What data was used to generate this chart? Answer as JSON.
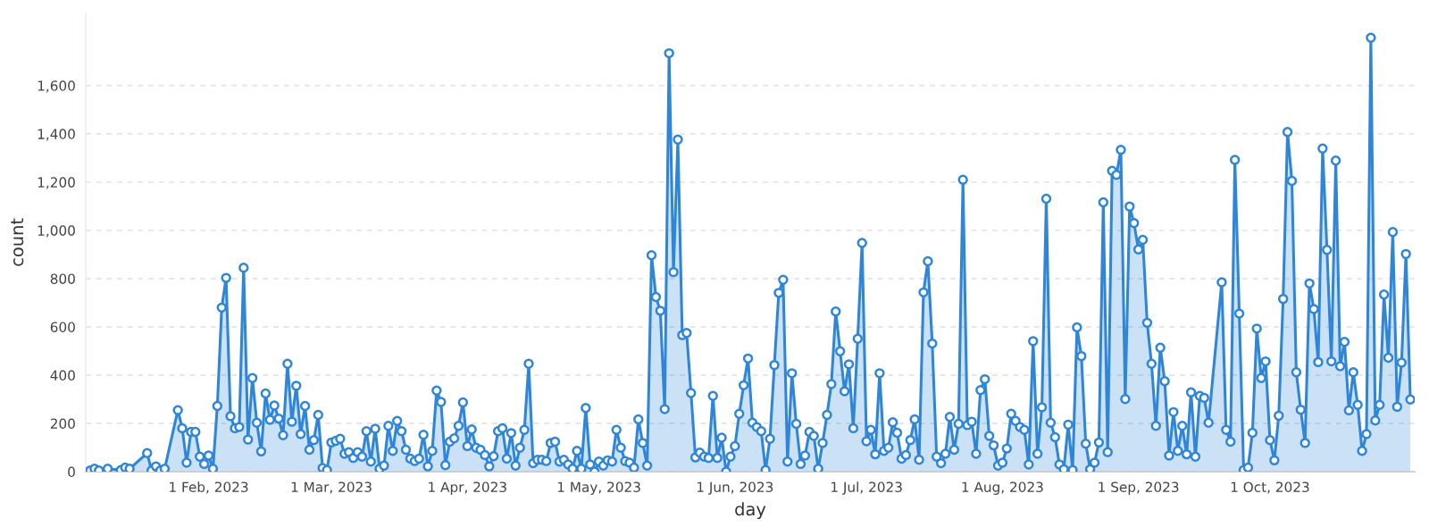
{
  "chart_data": {
    "type": "area",
    "xlabel": "day",
    "ylabel": "count",
    "color": "#2f86d8",
    "marker": "circle",
    "line_style": "solid",
    "grid": "y",
    "legend": false,
    "xlim": [
      "2023-01-04",
      "2023-11-03"
    ],
    "ylim": [
      0,
      1900
    ],
    "xticks": [
      {
        "value": "2023-02-01",
        "label": "1 Feb, 2023"
      },
      {
        "value": "2023-03-01",
        "label": "1 Mar, 2023"
      },
      {
        "value": "2023-04-01",
        "label": "1 Apr, 2023"
      },
      {
        "value": "2023-05-01",
        "label": "1 May, 2023"
      },
      {
        "value": "2023-06-01",
        "label": "1 Jun, 2023"
      },
      {
        "value": "2023-07-01",
        "label": "1 Jul, 2023"
      },
      {
        "value": "2023-08-01",
        "label": "1 Aug, 2023"
      },
      {
        "value": "2023-09-01",
        "label": "1 Sep, 2023"
      },
      {
        "value": "2023-10-01",
        "label": "1 Oct, 2023"
      }
    ],
    "yticks": [
      0,
      200,
      400,
      600,
      800,
      {
        "value": 1000,
        "label": "1,000"
      },
      {
        "value": 1200,
        "label": "1,200"
      },
      {
        "value": 1400,
        "label": "1,400"
      },
      {
        "value": 1600,
        "label": "1,600"
      }
    ],
    "x": [
      "2023-01-05",
      "2023-01-06",
      "2023-01-07",
      "2023-01-09",
      "2023-01-12",
      "2023-01-13",
      "2023-01-14",
      "2023-01-18",
      "2023-01-19",
      "2023-01-20",
      "2023-01-21",
      "2023-01-22",
      "2023-01-25",
      "2023-01-26",
      "2023-01-27",
      "2023-01-28",
      "2023-01-29",
      "2023-01-30",
      "2023-01-31",
      "2023-02-01",
      "2023-02-02",
      "2023-02-03",
      "2023-02-04",
      "2023-02-05",
      "2023-02-06",
      "2023-02-07",
      "2023-02-08",
      "2023-02-09",
      "2023-02-10",
      "2023-02-11",
      "2023-02-12",
      "2023-02-13",
      "2023-02-14",
      "2023-02-15",
      "2023-02-16",
      "2023-02-17",
      "2023-02-18",
      "2023-02-19",
      "2023-02-20",
      "2023-02-21",
      "2023-02-22",
      "2023-02-23",
      "2023-02-24",
      "2023-02-25",
      "2023-02-26",
      "2023-02-27",
      "2023-02-28",
      "2023-03-01",
      "2023-03-02",
      "2023-03-03",
      "2023-03-04",
      "2023-03-05",
      "2023-03-06",
      "2023-03-07",
      "2023-03-08",
      "2023-03-09",
      "2023-03-10",
      "2023-03-11",
      "2023-03-12",
      "2023-03-13",
      "2023-03-14",
      "2023-03-15",
      "2023-03-16",
      "2023-03-17",
      "2023-03-18",
      "2023-03-19",
      "2023-03-20",
      "2023-03-21",
      "2023-03-22",
      "2023-03-23",
      "2023-03-24",
      "2023-03-25",
      "2023-03-26",
      "2023-03-27",
      "2023-03-28",
      "2023-03-29",
      "2023-03-30",
      "2023-03-31",
      "2023-04-01",
      "2023-04-02",
      "2023-04-03",
      "2023-04-04",
      "2023-04-05",
      "2023-04-06",
      "2023-04-07",
      "2023-04-08",
      "2023-04-09",
      "2023-04-10",
      "2023-04-11",
      "2023-04-12",
      "2023-04-13",
      "2023-04-14",
      "2023-04-15",
      "2023-04-16",
      "2023-04-17",
      "2023-04-18",
      "2023-04-19",
      "2023-04-20",
      "2023-04-21",
      "2023-04-22",
      "2023-04-23",
      "2023-04-24",
      "2023-04-25",
      "2023-04-26",
      "2023-04-27",
      "2023-04-28",
      "2023-04-29",
      "2023-04-30",
      "2023-05-01",
      "2023-05-02",
      "2023-05-03",
      "2023-05-04",
      "2023-05-05",
      "2023-05-06",
      "2023-05-07",
      "2023-05-08",
      "2023-05-09",
      "2023-05-10",
      "2023-05-11",
      "2023-05-12",
      "2023-05-13",
      "2023-05-14",
      "2023-05-15",
      "2023-05-16",
      "2023-05-17",
      "2023-05-18",
      "2023-05-19",
      "2023-05-20",
      "2023-05-21",
      "2023-05-22",
      "2023-05-23",
      "2023-05-24",
      "2023-05-25",
      "2023-05-26",
      "2023-05-27",
      "2023-05-28",
      "2023-05-29",
      "2023-05-30",
      "2023-05-31",
      "2023-06-01",
      "2023-06-02",
      "2023-06-03",
      "2023-06-04",
      "2023-06-05",
      "2023-06-06",
      "2023-06-07",
      "2023-06-08",
      "2023-06-09",
      "2023-06-10",
      "2023-06-11",
      "2023-06-12",
      "2023-06-13",
      "2023-06-14",
      "2023-06-15",
      "2023-06-16",
      "2023-06-17",
      "2023-06-18",
      "2023-06-19",
      "2023-06-20",
      "2023-06-21",
      "2023-06-22",
      "2023-06-23",
      "2023-06-24",
      "2023-06-25",
      "2023-06-26",
      "2023-06-27",
      "2023-06-28",
      "2023-06-29",
      "2023-06-30",
      "2023-07-01",
      "2023-07-02",
      "2023-07-03",
      "2023-07-04",
      "2023-07-05",
      "2023-07-06",
      "2023-07-07",
      "2023-07-08",
      "2023-07-09",
      "2023-07-10",
      "2023-07-11",
      "2023-07-12",
      "2023-07-13",
      "2023-07-14",
      "2023-07-15",
      "2023-07-16",
      "2023-07-17",
      "2023-07-18",
      "2023-07-19",
      "2023-07-20",
      "2023-07-21",
      "2023-07-22",
      "2023-07-23",
      "2023-07-24",
      "2023-07-25",
      "2023-07-26",
      "2023-07-27",
      "2023-07-28",
      "2023-07-29",
      "2023-07-30",
      "2023-07-31",
      "2023-08-01",
      "2023-08-02",
      "2023-08-03",
      "2023-08-04",
      "2023-08-05",
      "2023-08-06",
      "2023-08-07",
      "2023-08-08",
      "2023-08-09",
      "2023-08-10",
      "2023-08-11",
      "2023-08-12",
      "2023-08-13",
      "2023-08-14",
      "2023-08-15",
      "2023-08-16",
      "2023-08-17",
      "2023-08-18",
      "2023-08-19",
      "2023-08-20",
      "2023-08-21",
      "2023-08-22",
      "2023-08-23",
      "2023-08-24",
      "2023-08-25",
      "2023-08-26",
      "2023-08-27",
      "2023-08-28",
      "2023-08-29",
      "2023-08-30",
      "2023-08-31",
      "2023-09-01",
      "2023-09-02",
      "2023-09-03",
      "2023-09-04",
      "2023-09-05",
      "2023-09-06",
      "2023-09-07",
      "2023-09-08",
      "2023-09-09",
      "2023-09-10",
      "2023-09-11",
      "2023-09-12",
      "2023-09-13",
      "2023-09-14",
      "2023-09-15",
      "2023-09-16",
      "2023-09-17",
      "2023-09-20",
      "2023-09-21",
      "2023-09-22",
      "2023-09-23",
      "2023-09-24",
      "2023-09-25",
      "2023-09-26",
      "2023-09-27",
      "2023-09-28",
      "2023-09-29",
      "2023-09-30",
      "2023-10-01",
      "2023-10-02",
      "2023-10-03",
      "2023-10-04",
      "2023-10-05",
      "2023-10-06",
      "2023-10-07",
      "2023-10-08",
      "2023-10-09",
      "2023-10-10",
      "2023-10-11",
      "2023-10-12",
      "2023-10-13",
      "2023-10-14",
      "2023-10-15",
      "2023-10-16",
      "2023-10-17",
      "2023-10-18",
      "2023-10-19",
      "2023-10-20",
      "2023-10-21",
      "2023-10-22",
      "2023-10-23",
      "2023-10-24",
      "2023-10-25",
      "2023-10-26",
      "2023-10-27",
      "2023-10-28",
      "2023-10-29",
      "2023-10-30",
      "2023-10-31",
      "2023-11-01",
      "2023-11-02"
    ],
    "values": [
      5,
      12,
      5,
      12,
      7,
      17,
      12,
      77,
      5,
      22,
      5,
      12,
      255,
      180,
      37,
      165,
      165,
      62,
      32,
      67,
      12,
      272,
      680,
      803,
      230,
      180,
      185,
      845,
      133,
      388,
      203,
      84,
      324,
      215,
      274,
      220,
      151,
      447,
      207,
      356,
      156,
      272,
      91,
      131,
      235,
      15,
      7,
      121,
      128,
      136,
      74,
      81,
      57,
      81,
      62,
      168,
      42,
      178,
      12,
      25,
      190,
      86,
      210,
      168,
      91,
      54,
      44,
      54,
      153,
      22,
      86,
      336,
      289,
      27,
      124,
      138,
      190,
      287,
      106,
      175,
      99,
      91,
      69,
      22,
      64,
      168,
      180,
      54,
      160,
      25,
      99,
      173,
      447,
      35,
      49,
      49,
      44,
      119,
      124,
      42,
      49,
      30,
      12,
      86,
      12,
      264,
      30,
      0,
      42,
      25,
      47,
      42,
      173,
      99,
      44,
      37,
      17,
      217,
      119,
      25,
      897,
      724,
      667,
      259,
      1734,
      827,
      1376,
      566,
      575,
      326,
      59,
      79,
      62,
      57,
      314,
      57,
      141,
      0,
      62,
      106,
      240,
      358,
      469,
      203,
      185,
      168,
      7,
      136,
      442,
      741,
      795,
      42,
      408,
      198,
      32,
      67,
      165,
      148,
      12,
      119,
      235,
      363,
      664,
      499,
      333,
      445,
      180,
      551,
      948,
      126,
      173,
      72,
      408,
      86,
      99,
      205,
      161,
      54,
      69,
      131,
      217,
      49,
      743,
      872,
      531,
      62,
      35,
      74,
      227,
      91,
      198,
      1210,
      193,
      207,
      74,
      338,
      383,
      148,
      109,
      25,
      37,
      96,
      240,
      210,
      185,
      173,
      30,
      541,
      74,
      267,
      1131,
      203,
      143,
      30,
      10,
      195,
      7,
      598,
      479,
      116,
      10,
      37,
      121,
      1116,
      81,
      1247,
      1230,
      1334,
      301,
      1099,
      1030,
      921,
      961,
      617,
      447,
      190,
      514,
      375,
      67,
      247,
      86,
      190,
      72,
      329,
      62,
      314,
      306,
      203,
      785,
      173,
      124,
      1292,
      655,
      7,
      17,
      161,
      593,
      388,
      457,
      131,
      47,
      232,
      716,
      1408,
      1205,
      412,
      257,
      119,
      780,
      674,
      454,
      1339,
      919,
      457,
      1289,
      437,
      538,
      254,
      412,
      277,
      86,
      156,
      1798,
      212,
      277,
      734,
      472,
      993,
      269,
      452,
      902,
      299
    ]
  }
}
